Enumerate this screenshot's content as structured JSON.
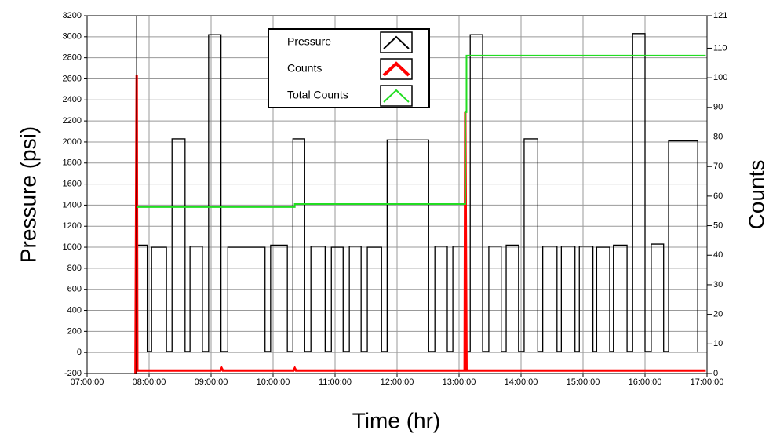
{
  "chart_data": {
    "type": "line",
    "x_label": "Time (hr)",
    "y_label": "Pressure (psi)",
    "y2_label": "Counts",
    "xlim": [
      7,
      17
    ],
    "xticks": [
      {
        "value": 7,
        "label": "07:00:00"
      },
      {
        "value": 8,
        "label": "08:00:00"
      },
      {
        "value": 9,
        "label": "09:00:00"
      },
      {
        "value": 10,
        "label": "10:00:00"
      },
      {
        "value": 11,
        "label": "11:00:00"
      },
      {
        "value": 12,
        "label": "12:00:00"
      },
      {
        "value": 13,
        "label": "13:00:00"
      },
      {
        "value": 14,
        "label": "14:00:00"
      },
      {
        "value": 15,
        "label": "15:00:00"
      },
      {
        "value": 16,
        "label": "16:00:00"
      },
      {
        "value": 17,
        "label": "17:00:00"
      }
    ],
    "ylim": [
      -200,
      3200
    ],
    "yticks": [
      -200,
      0,
      200,
      400,
      600,
      800,
      1000,
      1200,
      1400,
      1600,
      1800,
      2000,
      2200,
      2400,
      2600,
      2800,
      3000,
      3200
    ],
    "y2lim": [
      0,
      121
    ],
    "y2ticks": [
      0,
      10,
      20,
      30,
      40,
      50,
      60,
      70,
      80,
      90,
      100,
      110,
      121
    ],
    "grid": true,
    "legend": "upper center",
    "series": [
      {
        "name": "Pressure",
        "color": "#000000",
        "x": [
          7.8,
          7.8,
          7.97,
          7.97,
          8.04,
          8.04,
          8.28,
          8.28,
          8.37,
          8.37,
          8.58,
          8.58,
          8.66,
          8.66,
          8.86,
          8.86,
          8.96,
          8.96,
          9.16,
          9.16,
          9.27,
          9.27,
          9.87,
          9.87,
          9.96,
          9.96,
          10.23,
          10.23,
          10.32,
          10.32,
          10.51,
          10.51,
          10.61,
          10.61,
          10.84,
          10.84,
          10.94,
          10.94,
          11.13,
          11.13,
          11.23,
          11.23,
          11.42,
          11.42,
          11.52,
          11.52,
          11.75,
          11.75,
          11.84,
          11.84,
          12.51,
          12.51,
          12.61,
          12.61,
          12.81,
          12.81,
          12.9,
          12.9,
          13.1,
          13.1,
          13.18,
          13.18,
          13.38,
          13.38,
          13.48,
          13.48,
          13.68,
          13.68,
          13.76,
          13.76,
          13.96,
          13.96,
          14.05,
          14.05,
          14.27,
          14.27,
          14.35,
          14.35,
          14.58,
          14.58,
          14.65,
          14.65,
          14.87,
          14.87,
          14.94,
          14.94,
          15.16,
          15.16,
          15.22,
          15.22,
          15.43,
          15.43,
          15.49,
          15.49,
          15.71,
          15.71,
          15.8,
          15.8,
          16,
          16,
          16.1,
          16.1,
          16.3,
          16.3,
          16.38,
          16.38,
          16.85,
          16.85
        ],
        "values": [
          10,
          1020,
          1020,
          10,
          10,
          1000,
          1000,
          10,
          10,
          2030,
          2030,
          10,
          10,
          1010,
          1010,
          10,
          10,
          3020,
          3020,
          10,
          10,
          1000,
          1000,
          10,
          10,
          1020,
          1020,
          10,
          10,
          2030,
          2030,
          10,
          10,
          1010,
          1010,
          10,
          10,
          1000,
          1000,
          10,
          10,
          1010,
          1010,
          10,
          10,
          1000,
          1000,
          10,
          10,
          2020,
          2020,
          10,
          10,
          1010,
          1010,
          10,
          10,
          1010,
          1010,
          10,
          10,
          3020,
          3020,
          10,
          10,
          1010,
          1010,
          10,
          10,
          1020,
          1020,
          10,
          10,
          2030,
          2030,
          10,
          10,
          1010,
          1010,
          10,
          10,
          1010,
          1010,
          10,
          10,
          1010,
          1010,
          10,
          10,
          1000,
          1000,
          10,
          10,
          1020,
          1020,
          10,
          10,
          3030,
          3030,
          10,
          10,
          1030,
          1030,
          10,
          10,
          2010,
          2010,
          10
        ]
      },
      {
        "name": "Counts",
        "color": "#ff0000",
        "axis": "y2",
        "x": [
          7.78,
          7.8,
          7.81,
          9.15,
          9.17,
          9.19,
          10.33,
          10.35,
          10.37,
          13.09,
          13.1,
          13.12,
          16.98
        ],
        "values": [
          0,
          101,
          1,
          1,
          1.8,
          1,
          1,
          1.8,
          1,
          1,
          88.4,
          1,
          1
        ]
      },
      {
        "name": "Total Counts",
        "color": "#22dd22",
        "axis": "y2",
        "x": [
          7.8,
          10.35,
          10.35,
          13.1,
          13.1,
          13.12,
          13.12,
          16.98
        ],
        "values": [
          56.3,
          56.3,
          57.3,
          57.3,
          88.4,
          88.4,
          107.5,
          107.5
        ]
      }
    ]
  }
}
